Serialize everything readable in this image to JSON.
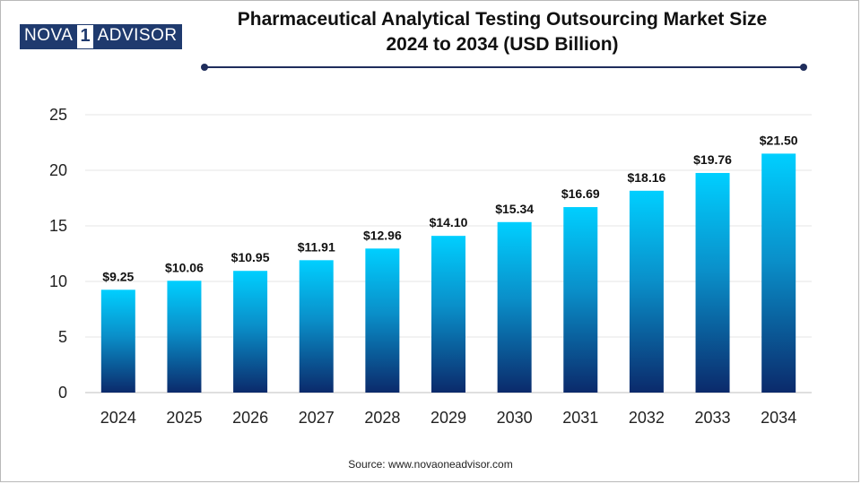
{
  "logo": {
    "part1": "NOVA",
    "part2": "1",
    "part3": "ADVISOR"
  },
  "title": {
    "line1": "Pharmaceutical Analytical Testing Outsourcing Market Size",
    "line2": "2024 to 2034 (USD Billion)"
  },
  "source": "Source: www.novaoneadvisor.com",
  "colors": {
    "bar_top": "#00cfff",
    "bar_mid": "#0a8fc9",
    "bar_bottom": "#0b2a6b",
    "rule": "#1f2d5c",
    "grid": "#e6e6e6",
    "axis": "#bfbfbf"
  },
  "chart_data": {
    "type": "bar",
    "title": "Pharmaceutical Analytical Testing Outsourcing Market Size 2024 to 2034 (USD Billion)",
    "xlabel": "",
    "ylabel": "",
    "ylim": [
      0,
      25
    ],
    "yticks": [
      0,
      5,
      10,
      15,
      20,
      25
    ],
    "grid": true,
    "categories": [
      "2024",
      "2025",
      "2026",
      "2027",
      "2028",
      "2029",
      "2030",
      "2031",
      "2032",
      "2033",
      "2034"
    ],
    "values": [
      9.25,
      10.06,
      10.95,
      11.91,
      12.96,
      14.1,
      15.34,
      16.69,
      18.16,
      19.76,
      21.5
    ],
    "labels": [
      "$9.25",
      "$10.06",
      "$10.95",
      "$11.91",
      "$12.96",
      "$14.10",
      "$15.34",
      "$16.69",
      "$18.16",
      "$19.76",
      "$21.50"
    ]
  }
}
